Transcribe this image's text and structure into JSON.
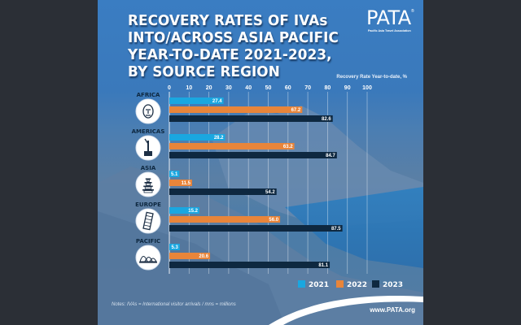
{
  "poster": {
    "title_lines": [
      "RECOVERY RATES OF IVAs",
      "INTO/ACROSS ASIA PACIFIC",
      "YEAR-TO-DATE 2021-2023,",
      "BY SOURCE REGION"
    ],
    "logo": {
      "name": "PATA",
      "registered": "®",
      "subtitle": "Pacific Asia Travel Association"
    },
    "notes": "Notes: IVAs = International visitor arrivals / mns = millions",
    "website": "www.PATA.org"
  },
  "chart_data": {
    "type": "bar",
    "orientation": "horizontal",
    "title": "RECOVERY RATES OF IVAs INTO/ACROSS ASIA PACIFIC YEAR-TO-DATE 2021-2023, BY SOURCE REGION",
    "xlabel": "Recovery Rate Year-to-date, %",
    "ylabel": "",
    "xlim": [
      0,
      100
    ],
    "xticks": [
      0,
      10,
      20,
      30,
      40,
      50,
      60,
      70,
      80,
      90,
      100
    ],
    "grid": true,
    "legend_position": "bottom-right",
    "categories": [
      "AFRICA",
      "AMERICAS",
      "ASIA",
      "EUROPE",
      "PACIFIC"
    ],
    "category_icons": [
      "african-mask-icon",
      "statue-of-liberty-icon",
      "pagoda-icon",
      "leaning-tower-icon",
      "opera-house-icon"
    ],
    "series": [
      {
        "name": "2021",
        "color": "#1aa7e0",
        "values": [
          27.4,
          28.2,
          5.1,
          15.2,
          5.3
        ]
      },
      {
        "name": "2022",
        "color": "#e8853a",
        "values": [
          67.2,
          63.2,
          11.5,
          56.0,
          20.6
        ]
      },
      {
        "name": "2023",
        "color": "#0e2840",
        "values": [
          82.6,
          84.7,
          54.2,
          87.5,
          81.1
        ]
      }
    ]
  }
}
